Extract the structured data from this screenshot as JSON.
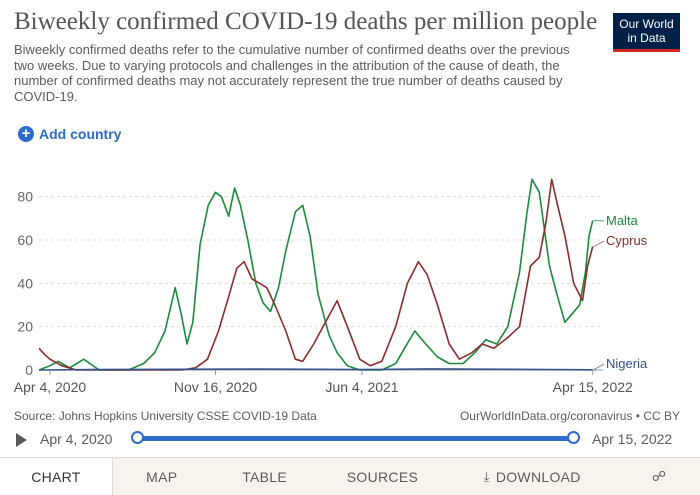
{
  "header": {
    "title": "Biweekly confirmed COVID-19 deaths per million people",
    "subtitle": "Biweekly confirmed deaths refer to the cumulative number of confirmed deaths over the previous two weeks. Due to varying protocols and challenges in the attribution of the cause of death, the number of confirmed deaths may not accurately represent the true number of deaths caused by COVID-19.",
    "logo_line1": "Our World",
    "logo_line2": "in Data",
    "add_country_label": "Add country"
  },
  "chart_data": {
    "type": "line",
    "title": "Biweekly confirmed COVID-19 deaths per million people",
    "xlabel": "",
    "ylabel": "",
    "ylim": [
      0,
      90
    ],
    "yticks": [
      0,
      20,
      40,
      60,
      80
    ],
    "xlim": [
      "2020-03-20",
      "2022-04-29"
    ],
    "xticks": [
      {
        "date": "2020-04-04",
        "label": "Apr 4, 2020"
      },
      {
        "date": "2020-11-16",
        "label": "Nov 16, 2020"
      },
      {
        "date": "2021-06-04",
        "label": "Jun 4, 2021"
      },
      {
        "date": "2022-04-15",
        "label": "Apr 15, 2022"
      }
    ],
    "grid": "horizontal",
    "series": [
      {
        "name": "Malta",
        "color": "#1a8c3a",
        "points": [
          [
            "2020-03-20",
            0
          ],
          [
            "2020-04-04",
            2
          ],
          [
            "2020-04-15",
            4
          ],
          [
            "2020-05-01",
            1
          ],
          [
            "2020-05-20",
            5
          ],
          [
            "2020-06-10",
            0
          ],
          [
            "2020-07-20",
            0
          ],
          [
            "2020-08-10",
            3
          ],
          [
            "2020-08-25",
            8
          ],
          [
            "2020-09-08",
            18
          ],
          [
            "2020-09-22",
            38
          ],
          [
            "2020-09-30",
            26
          ],
          [
            "2020-10-08",
            12
          ],
          [
            "2020-10-16",
            22
          ],
          [
            "2020-10-26",
            58
          ],
          [
            "2020-11-06",
            76
          ],
          [
            "2020-11-16",
            82
          ],
          [
            "2020-11-24",
            80
          ],
          [
            "2020-12-04",
            71
          ],
          [
            "2020-12-12",
            84
          ],
          [
            "2020-12-20",
            76
          ],
          [
            "2020-12-30",
            60
          ],
          [
            "2021-01-10",
            40
          ],
          [
            "2021-01-20",
            31
          ],
          [
            "2021-01-30",
            27
          ],
          [
            "2021-02-10",
            38
          ],
          [
            "2021-02-20",
            55
          ],
          [
            "2021-03-05",
            73
          ],
          [
            "2021-03-15",
            76
          ],
          [
            "2021-03-25",
            62
          ],
          [
            "2021-04-05",
            35
          ],
          [
            "2021-04-20",
            16
          ],
          [
            "2021-05-01",
            8
          ],
          [
            "2021-05-15",
            2
          ],
          [
            "2021-06-01",
            0
          ],
          [
            "2021-07-01",
            0
          ],
          [
            "2021-07-20",
            3
          ],
          [
            "2021-08-01",
            10
          ],
          [
            "2021-08-15",
            18
          ],
          [
            "2021-08-30",
            12
          ],
          [
            "2021-09-15",
            6
          ],
          [
            "2021-10-01",
            3
          ],
          [
            "2021-10-20",
            3
          ],
          [
            "2021-11-05",
            8
          ],
          [
            "2021-11-20",
            14
          ],
          [
            "2021-12-05",
            12
          ],
          [
            "2021-12-20",
            20
          ],
          [
            "2022-01-05",
            45
          ],
          [
            "2022-01-15",
            72
          ],
          [
            "2022-01-22",
            88
          ],
          [
            "2022-02-01",
            82
          ],
          [
            "2022-02-08",
            65
          ],
          [
            "2022-02-15",
            48
          ],
          [
            "2022-02-25",
            35
          ],
          [
            "2022-03-08",
            22
          ],
          [
            "2022-03-18",
            26
          ],
          [
            "2022-03-28",
            30
          ],
          [
            "2022-04-05",
            45
          ],
          [
            "2022-04-10",
            62
          ],
          [
            "2022-04-15",
            69
          ]
        ]
      },
      {
        "name": "Cyprus",
        "color": "#8b2d2d",
        "points": [
          [
            "2020-03-20",
            10
          ],
          [
            "2020-03-28",
            7
          ],
          [
            "2020-04-04",
            5
          ],
          [
            "2020-04-20",
            2
          ],
          [
            "2020-05-10",
            0
          ],
          [
            "2020-07-01",
            0
          ],
          [
            "2020-08-15",
            0
          ],
          [
            "2020-10-01",
            0
          ],
          [
            "2020-10-20",
            1
          ],
          [
            "2020-11-05",
            5
          ],
          [
            "2020-11-20",
            18
          ],
          [
            "2020-12-05",
            35
          ],
          [
            "2020-12-15",
            47
          ],
          [
            "2020-12-25",
            50
          ],
          [
            "2021-01-05",
            42
          ],
          [
            "2021-01-15",
            40
          ],
          [
            "2021-01-25",
            38
          ],
          [
            "2021-02-05",
            30
          ],
          [
            "2021-02-20",
            18
          ],
          [
            "2021-03-05",
            5
          ],
          [
            "2021-03-15",
            4
          ],
          [
            "2021-03-30",
            12
          ],
          [
            "2021-04-15",
            22
          ],
          [
            "2021-05-01",
            32
          ],
          [
            "2021-05-15",
            20
          ],
          [
            "2021-06-01",
            5
          ],
          [
            "2021-06-15",
            2
          ],
          [
            "2021-07-01",
            4
          ],
          [
            "2021-07-20",
            20
          ],
          [
            "2021-08-05",
            40
          ],
          [
            "2021-08-20",
            50
          ],
          [
            "2021-09-01",
            44
          ],
          [
            "2021-09-15",
            30
          ],
          [
            "2021-10-01",
            12
          ],
          [
            "2021-10-15",
            5
          ],
          [
            "2021-11-01",
            8
          ],
          [
            "2021-11-15",
            12
          ],
          [
            "2021-12-01",
            10
          ],
          [
            "2021-12-20",
            15
          ],
          [
            "2022-01-05",
            20
          ],
          [
            "2022-01-20",
            48
          ],
          [
            "2022-02-01",
            52
          ],
          [
            "2022-02-10",
            68
          ],
          [
            "2022-02-18",
            88
          ],
          [
            "2022-02-26",
            76
          ],
          [
            "2022-03-08",
            62
          ],
          [
            "2022-03-20",
            40
          ],
          [
            "2022-04-01",
            32
          ],
          [
            "2022-04-08",
            48
          ],
          [
            "2022-04-15",
            57
          ]
        ]
      },
      {
        "name": "Nigeria",
        "color": "#33508f",
        "points": [
          [
            "2020-03-20",
            0
          ],
          [
            "2020-06-01",
            0.2
          ],
          [
            "2020-08-01",
            0.3
          ],
          [
            "2021-01-15",
            0.4
          ],
          [
            "2021-06-01",
            0.2
          ],
          [
            "2021-09-01",
            0.5
          ],
          [
            "2022-01-15",
            0.3
          ],
          [
            "2022-04-15",
            0.1
          ]
        ]
      }
    ],
    "series_labels": [
      {
        "name": "Malta",
        "label": "Malta"
      },
      {
        "name": "Cyprus",
        "label": "Cyprus"
      },
      {
        "name": "Nigeria",
        "label": "Nigeria"
      }
    ]
  },
  "footer": {
    "source": "Source: Johns Hopkins University CSSE COVID-19 Data",
    "license": "OurWorldInData.org/coronavirus • CC BY"
  },
  "timeline": {
    "start_label": "Apr 4, 2020",
    "end_label": "Apr 15, 2022"
  },
  "tabs": [
    {
      "label": "CHART",
      "active": true
    },
    {
      "label": "MAP",
      "active": false
    },
    {
      "label": "TABLE",
      "active": false
    },
    {
      "label": "SOURCES",
      "active": false
    },
    {
      "label": "DOWNLOAD",
      "active": false
    }
  ],
  "icons": {
    "add": "plus-circle-icon",
    "play": "play-icon",
    "download": "download-icon",
    "share": "share-icon"
  },
  "colors": {
    "accent": "#2d6ccb",
    "logo_bg": "#002147",
    "logo_stripe": "#ce261e"
  }
}
